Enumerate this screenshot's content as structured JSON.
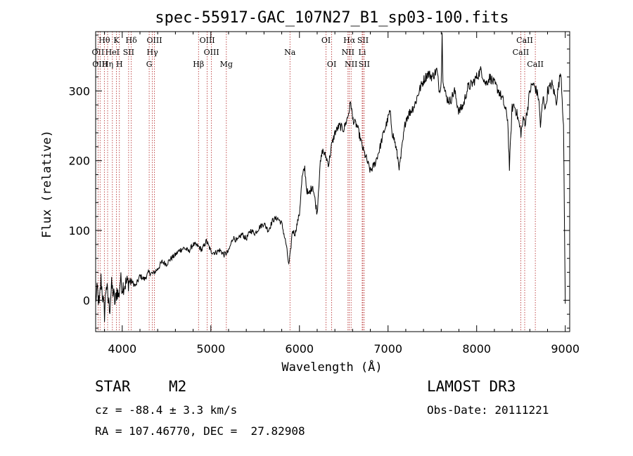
{
  "chart_data": {
    "type": "line",
    "title": "spec-55917-GAC_107N27_B1_sp03-100.fits",
    "xlabel": "Wavelength (Å)",
    "ylabel": "Flux (relative)",
    "xlim": [
      3700,
      9050
    ],
    "ylim": [
      -45,
      385
    ],
    "xticks": [
      4000,
      5000,
      6000,
      7000,
      8000,
      9000
    ],
    "yticks": [
      0,
      100,
      200,
      300
    ],
    "xtick_labels": [
      "4000",
      "5000",
      "6000",
      "7000",
      "8000",
      "9000"
    ],
    "ytick_labels": [
      "0",
      "100",
      "200",
      "300"
    ],
    "series": [
      {
        "name": "flux",
        "color": "#000000",
        "x": [
          3700,
          3720,
          3740,
          3760,
          3780,
          3800,
          3820,
          3840,
          3860,
          3880,
          3900,
          3920,
          3940,
          3960,
          3980,
          4000,
          4050,
          4100,
          4150,
          4200,
          4250,
          4300,
          4350,
          4400,
          4450,
          4500,
          4550,
          4600,
          4650,
          4700,
          4750,
          4800,
          4850,
          4900,
          4950,
          5000,
          5050,
          5100,
          5150,
          5200,
          5250,
          5300,
          5350,
          5400,
          5450,
          5500,
          5550,
          5600,
          5650,
          5700,
          5750,
          5800,
          5850,
          5880,
          5900,
          5920,
          5950,
          6000,
          6030,
          6060,
          6080,
          6100,
          6150,
          6180,
          6200,
          6230,
          6260,
          6300,
          6330,
          6360,
          6400,
          6450,
          6500,
          6550,
          6580,
          6600,
          6620,
          6650,
          6680,
          6700,
          6720,
          6750,
          6800,
          6850,
          6900,
          6950,
          7000,
          7020,
          7050,
          7080,
          7100,
          7130,
          7160,
          7200,
          7250,
          7300,
          7350,
          7400,
          7450,
          7500,
          7550,
          7580,
          7600,
          7610,
          7620,
          7640,
          7660,
          7700,
          7750,
          7800,
          7850,
          7900,
          7950,
          8000,
          8050,
          8100,
          8150,
          8200,
          8250,
          8300,
          8350,
          8370,
          8390,
          8400,
          8420,
          8450,
          8500,
          8530,
          8550,
          8580,
          8600,
          8630,
          8660,
          8700,
          8720,
          8750,
          8780,
          8800,
          8850,
          8900,
          8950,
          8980,
          9000
        ],
        "y": [
          0,
          15,
          -10,
          30,
          5,
          -20,
          25,
          0,
          -10,
          20,
          10,
          -5,
          15,
          5,
          30,
          20,
          25,
          28,
          20,
          35,
          30,
          40,
          38,
          45,
          55,
          52,
          60,
          65,
          72,
          75,
          70,
          80,
          78,
          72,
          85,
          70,
          68,
          72,
          65,
          70,
          90,
          85,
          95,
          88,
          100,
          96,
          105,
          110,
          100,
          115,
          118,
          110,
          80,
          50,
          70,
          100,
          95,
          125,
          175,
          190,
          160,
          150,
          165,
          140,
          125,
          190,
          215,
          205,
          195,
          220,
          240,
          250,
          245,
          265,
          285,
          260,
          255,
          250,
          235,
          225,
          215,
          205,
          185,
          195,
          215,
          240,
          260,
          270,
          240,
          225,
          210,
          190,
          220,
          260,
          270,
          280,
          300,
          315,
          325,
          320,
          330,
          300,
          315,
          380,
          320,
          300,
          290,
          285,
          300,
          270,
          280,
          305,
          310,
          320,
          330,
          310,
          320,
          310,
          300,
          285,
          260,
          190,
          250,
          275,
          280,
          270,
          240,
          260,
          255,
          280,
          300,
          310,
          305,
          290,
          250,
          290,
          275,
          300,
          310,
          285,
          330,
          250,
          -5
        ]
      }
    ],
    "lines": [
      {
        "name": "Hθ",
        "x": 3798,
        "row": 1
      },
      {
        "name": "K",
        "x": 3934,
        "row": 1
      },
      {
        "name": "Hδ",
        "x": 4102,
        "row": 1
      },
      {
        "name": "OIII",
        "x": 4363,
        "row": 1
      },
      {
        "name": "OIII",
        "x": 4959,
        "row": 1
      },
      {
        "name": "OI",
        "x": 6300,
        "row": 1
      },
      {
        "name": "Hα",
        "x": 6563,
        "row": 1
      },
      {
        "name": "SII",
        "x": 6716,
        "row": 1
      },
      {
        "name": "CaII",
        "x": 8542,
        "row": 1
      },
      {
        "name": "OII",
        "x": 3727,
        "row": 2
      },
      {
        "name": "HeI",
        "x": 3889,
        "row": 2
      },
      {
        "name": "SII",
        "x": 4072,
        "row": 2
      },
      {
        "name": "Hγ",
        "x": 4340,
        "row": 2
      },
      {
        "name": "OIII",
        "x": 5007,
        "row": 2
      },
      {
        "name": "Na",
        "x": 5893,
        "row": 2
      },
      {
        "name": "NII",
        "x": 6548,
        "row": 2
      },
      {
        "name": "Li",
        "x": 6708,
        "row": 2
      },
      {
        "name": "CaII",
        "x": 8498,
        "row": 2
      },
      {
        "name": "OIII",
        "x": 3750,
        "row": 3
      },
      {
        "name": "Hη",
        "x": 3835,
        "row": 3
      },
      {
        "name": "H",
        "x": 3968,
        "row": 3
      },
      {
        "name": "G",
        "x": 4304,
        "row": 3
      },
      {
        "name": "Hβ",
        "x": 4861,
        "row": 3
      },
      {
        "name": "Mg",
        "x": 5175,
        "row": 3
      },
      {
        "name": "OI",
        "x": 6364,
        "row": 3
      },
      {
        "name": "NII",
        "x": 6583,
        "row": 3
      },
      {
        "name": "SII",
        "x": 6731,
        "row": 3
      },
      {
        "name": "CaII",
        "x": 8662,
        "row": 3
      }
    ]
  },
  "info": {
    "class_label": "STAR",
    "subclass": "M2",
    "survey": "LAMOST DR3",
    "cz": "cz = -88.4 ± 3.3 km/s",
    "obs_date": "Obs-Date: 20111221",
    "coords": "RA = 107.46770, DEC =  27.82908"
  },
  "colors": {
    "line_marker": "#b22222",
    "spectrum": "#000000",
    "axis": "#000000"
  }
}
